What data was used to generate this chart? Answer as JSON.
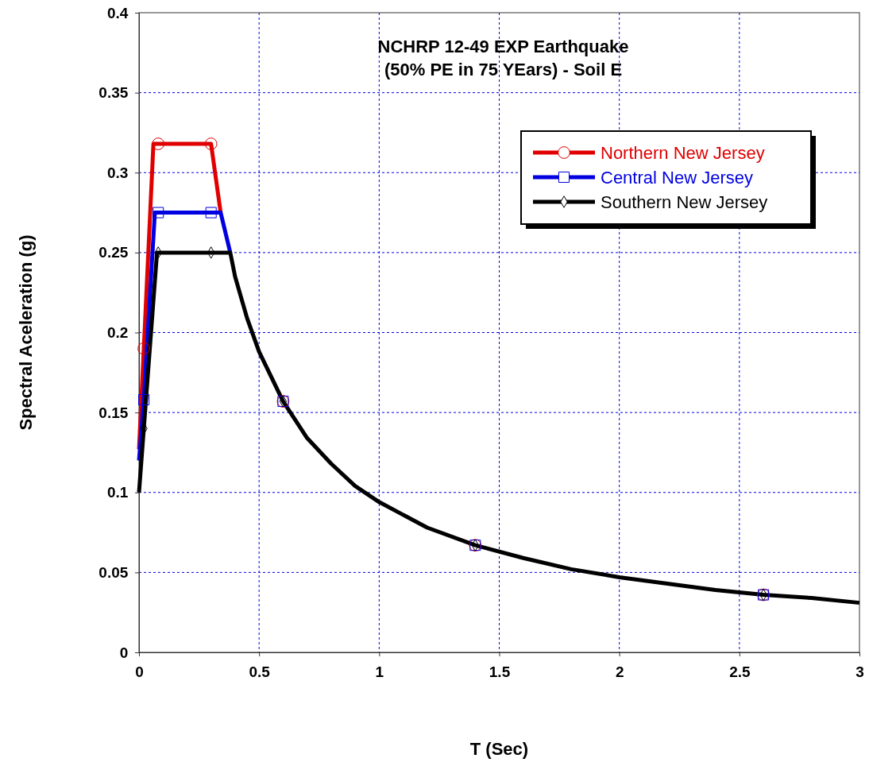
{
  "chart_data": {
    "type": "line",
    "title": "NCHRP 12-49 EXP Earthquake\n(50% PE in 75 YEars) - Soil E",
    "xlabel": "T (Sec)",
    "ylabel": "Spectral Aceleration (g)",
    "xlim": [
      0,
      3
    ],
    "ylim": [
      0,
      0.4
    ],
    "xticks": [
      0,
      0.5,
      1,
      1.5,
      2,
      2.5,
      3
    ],
    "yticks": [
      0,
      0.05,
      0.1,
      0.15,
      0.2,
      0.25,
      0.3,
      0.35,
      0.4
    ],
    "grid": true,
    "legend": "top right",
    "line_style": "solid",
    "series": [
      {
        "name": "Northern New Jersey",
        "color": "#e00000",
        "x": [
          0,
          0.02,
          0.06,
          0.3,
          0.34
        ],
        "values": [
          0.127,
          0.19,
          0.318,
          0.318,
          0.275
        ]
      },
      {
        "name": "Central New Jersey",
        "color": "#0000e0",
        "x": [
          0,
          0.02,
          0.066,
          0.3,
          0.34,
          0.38
        ],
        "values": [
          0.12,
          0.158,
          0.275,
          0.275,
          0.275,
          0.25
        ]
      },
      {
        "name": "Southern New Jersey",
        "color": "#000000",
        "x": [
          0,
          0.02,
          0.075,
          0.3,
          0.38,
          0.4,
          0.45,
          0.5,
          0.6,
          0.7,
          0.8,
          0.9,
          1,
          1.2,
          1.4,
          1.6,
          1.8,
          2,
          2.2,
          2.4,
          2.6,
          2.8,
          3
        ],
        "values": [
          0.1,
          0.14,
          0.25,
          0.25,
          0.25,
          0.235,
          0.209,
          0.188,
          0.157,
          0.134,
          0.118,
          0.104,
          0.094,
          0.078,
          0.067,
          0.059,
          0.052,
          0.047,
          0.043,
          0.039,
          0.036,
          0.034,
          0.031
        ]
      },
      {
        "type": "scatter",
        "color": "#e00000",
        "marker": "circle",
        "x": [
          0.02,
          0.08,
          0.3,
          0.6,
          1.4,
          2.6
        ],
        "values": [
          0.19,
          0.318,
          0.318,
          0.157,
          0.067,
          0.036
        ]
      },
      {
        "type": "scatter",
        "color": "#0000e0",
        "marker": "square",
        "x": [
          0.02,
          0.08,
          0.3,
          0.6,
          1.4,
          2.6
        ],
        "values": [
          0.158,
          0.275,
          0.275,
          0.157,
          0.067,
          0.036
        ]
      },
      {
        "type": "scatter",
        "color": "#000000",
        "marker": "diamond",
        "x": [
          0.02,
          0.08,
          0.3,
          0.6,
          1.4,
          2.6
        ],
        "values": [
          0.14,
          0.25,
          0.25,
          0.157,
          0.067,
          0.036
        ]
      }
    ]
  }
}
